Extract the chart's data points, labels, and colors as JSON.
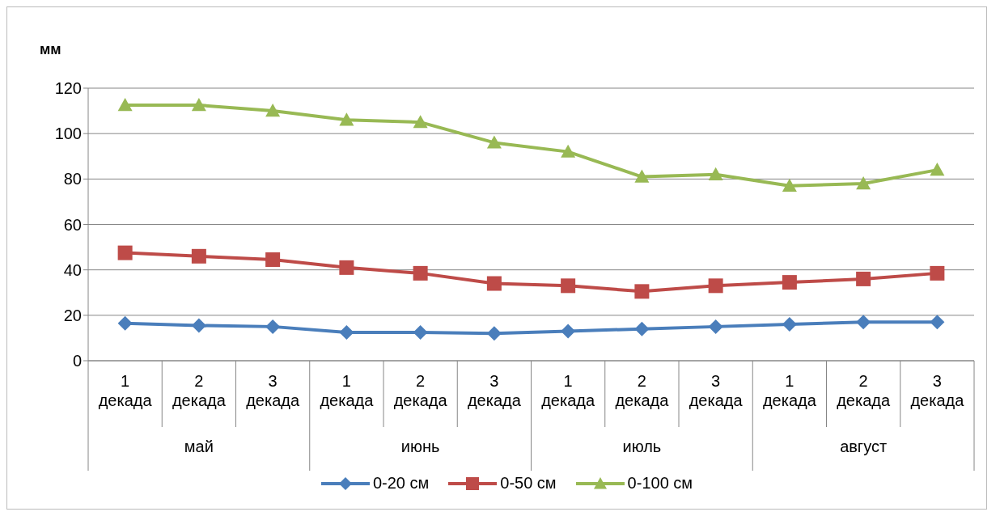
{
  "chart_data": {
    "type": "line",
    "ylabel": "мм",
    "categories": [
      "1 декада",
      "2 декада",
      "3 декада",
      "1 декада",
      "2 декада",
      "3 декада",
      "1 декада",
      "2 декада",
      "3 декада",
      "1 декада",
      "2 декада",
      "3 декада"
    ],
    "annotations": [
      "май",
      "июнь",
      "июль",
      "август"
    ],
    "ylim": [
      0,
      120
    ],
    "yticks": [
      0,
      20,
      40,
      60,
      80,
      100,
      120
    ],
    "grid": "y",
    "legend": "bottom",
    "series": [
      {
        "name": "0-20 см",
        "color": "#4a7ebb",
        "marker": "diamond",
        "values": [
          16.5,
          15.5,
          15,
          12.5,
          12.5,
          12,
          13,
          14,
          15,
          16,
          17,
          17
        ]
      },
      {
        "name": "0-50 см",
        "color": "#be4b48",
        "marker": "square",
        "values": [
          47.5,
          46,
          44.5,
          41,
          38.5,
          34,
          33,
          30.5,
          33,
          34.5,
          36,
          38.5
        ]
      },
      {
        "name": "0-100 см",
        "color": "#98b954",
        "marker": "triangle",
        "values": [
          112.5,
          112.5,
          110,
          106,
          105,
          96,
          92,
          81,
          82,
          77,
          78,
          84
        ]
      }
    ]
  }
}
